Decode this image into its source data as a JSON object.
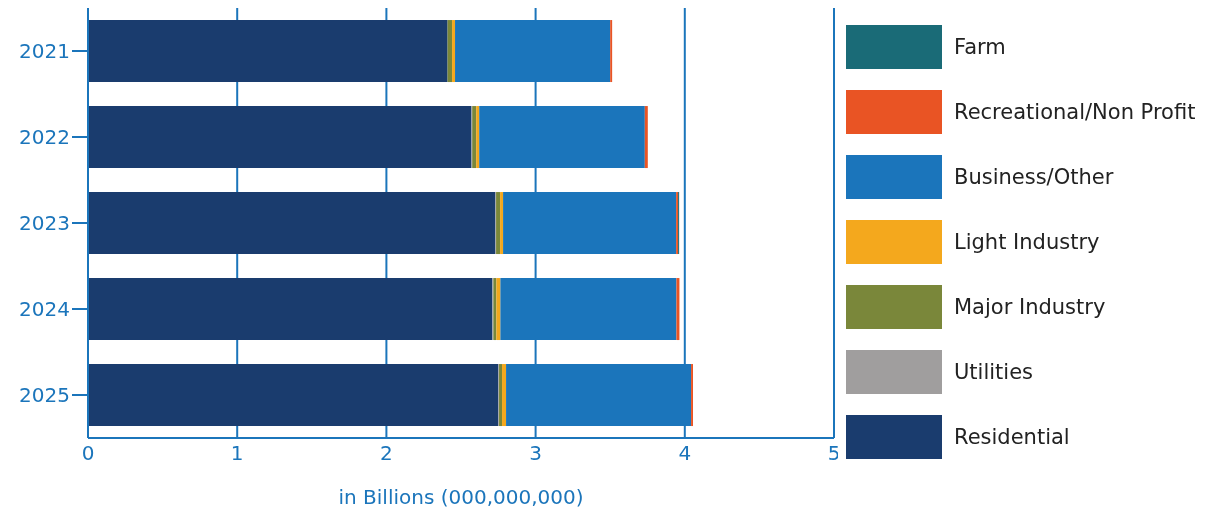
{
  "chart_data": {
    "type": "bar",
    "orientation": "horizontal",
    "stacked": true,
    "xlabel": "in Billions (000,000,000)",
    "categories": [
      "2021",
      "2022",
      "2023",
      "2024",
      "2025"
    ],
    "series": [
      {
        "name": "Residential",
        "color": "#1a3c6e",
        "values": [
          2.41,
          2.57,
          2.73,
          2.71,
          2.75
        ]
      },
      {
        "name": "Utilities",
        "color": "#a09e9e",
        "values": [
          null,
          0.005,
          0.005,
          0.007,
          0.005
        ]
      },
      {
        "name": "Major Industry",
        "color": "#7a873a",
        "values": [
          0.03,
          0.027,
          0.027,
          0.02,
          0.02
        ]
      },
      {
        "name": "Light Industry",
        "color": "#f4a81d",
        "values": [
          0.02,
          0.02,
          0.02,
          0.027,
          0.027
        ]
      },
      {
        "name": "Business/Other",
        "color": "#1b75bb",
        "values": [
          1.04,
          1.11,
          1.16,
          1.18,
          1.24
        ]
      },
      {
        "name": "Recreational/Non Profit",
        "color": "#e95424",
        "values": [
          0.013,
          0.02,
          0.013,
          0.02,
          0.013
        ]
      },
      {
        "name": "Farm",
        "color": "#1a6b77",
        "values": [
          null,
          null,
          0.007,
          null,
          null
        ]
      }
    ],
    "xlim": [
      0,
      5
    ],
    "xticks": [
      0,
      1,
      2,
      3,
      4,
      5
    ],
    "grid": "x",
    "legend": "right"
  }
}
